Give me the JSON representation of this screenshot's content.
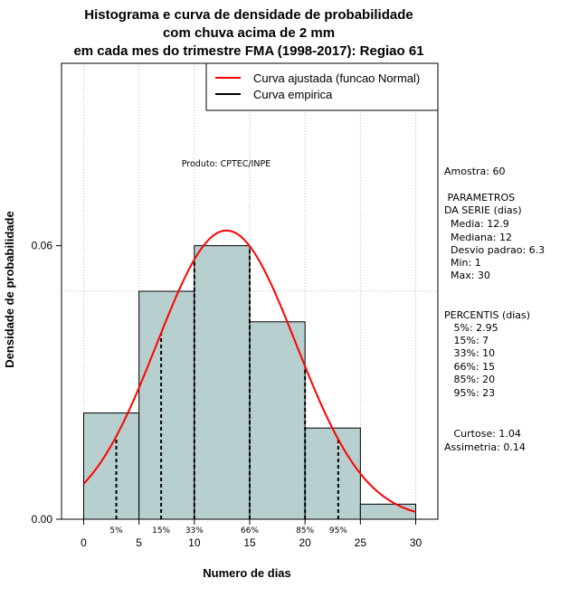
{
  "chart_data": {
    "type": "histogram",
    "title_lines": [
      "Histograma e curva de densidade de probabilidade",
      "com chuva acima de 2 mm",
      "em cada mes do trimestre FMA (1998-2017): Regiao 61"
    ],
    "xlabel": "Numero de dias",
    "ylabel": "Densidade de probabilidade",
    "xlim": [
      -2,
      32
    ],
    "ylim": [
      0,
      0.1
    ],
    "x_ticks": [
      0,
      5,
      10,
      15,
      20,
      25,
      30
    ],
    "y_ticks": [
      0.0,
      0.06
    ],
    "y_tick_labels": [
      "0.00",
      "0.06"
    ],
    "grid_y": [
      0.05,
      0.1
    ],
    "bins": [
      {
        "start": 0,
        "end": 5,
        "density": 0.0233
      },
      {
        "start": 5,
        "end": 10,
        "density": 0.05
      },
      {
        "start": 10,
        "end": 15,
        "density": 0.06
      },
      {
        "start": 15,
        "end": 20,
        "density": 0.0433
      },
      {
        "start": 20,
        "end": 25,
        "density": 0.02
      },
      {
        "start": 25,
        "end": 30,
        "density": 0.0033
      }
    ],
    "normal_fit": {
      "mean": 12.9,
      "sd": 6.3
    },
    "percentile_lines": [
      {
        "label": "5%",
        "x": 2.95
      },
      {
        "label": "15%",
        "x": 7
      },
      {
        "label": "33%",
        "x": 10
      },
      {
        "label": "66%",
        "x": 15
      },
      {
        "label": "85%",
        "x": 20
      },
      {
        "label": "95%",
        "x": 23
      }
    ],
    "legend": {
      "placement": "top-right",
      "entries": [
        {
          "label": "Curva ajustada (funcao Normal)",
          "color": "#ff0000"
        },
        {
          "label": "Curva empirica",
          "color": "#000000"
        }
      ]
    },
    "credit": "Produto: CPTEC/INPE",
    "stats_text": [
      "Amostra: 60",
      " PARAMETROS",
      "DA SERIE (dias)",
      "  Media: 12.9",
      "  Mediana: 12",
      "  Desvio padrao: 6.3",
      "  Min: 1",
      "  Max: 30",
      "PERCENTIS (dias)",
      "   5%: 2.95",
      "   15%: 7",
      "   33%: 10",
      "   66%: 15",
      "   85%: 20",
      "   95%: 23",
      "   Curtose: 1.04",
      "Assimetria: 0.14"
    ],
    "colors": {
      "bar_fill": "#b7cfcf",
      "bar_edge": "#000000",
      "curve": "#ff0000",
      "grid": "#bbbbbb"
    }
  }
}
